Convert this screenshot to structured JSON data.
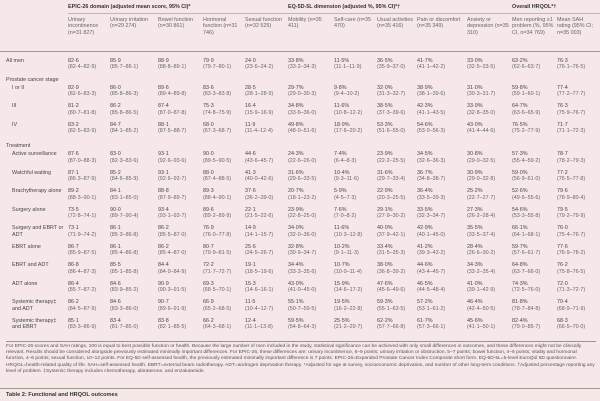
{
  "groups": {
    "epic": "EPIC-26 domain (adjusted mean score, 95% CI)*",
    "eq": "EQ-5D-5L dimension (adjusted %, 95% CI)*†",
    "overall": "Overall HRQOL*†"
  },
  "columns": [
    "Urinary incontinence (n=31 827)",
    "Urinary irritation (n=29 274)",
    "Bowel function (n=30 861)",
    "Hormonal function (n=31 746)",
    "Sexual function (n=32 525)",
    "Mobility (n=35 411)",
    "Self-care (n=35 470)",
    "Usual activities (n=35 416)",
    "Pain or discomfort (n=35 349)",
    "Anxiety or depression (n=35 310)",
    "Men reporting ≥1 problem (%, 95% CI, n=34 769)",
    "Mean SAH rating (95% CI; n=35 003)"
  ],
  "rows": [
    {
      "type": "data",
      "label": "All men",
      "indent": false,
      "cells": [
        [
          "82·6",
          "(82·4–82·9)"
        ],
        [
          "85·9",
          "(85·7–86·1)"
        ],
        [
          "88·9",
          "(88·8–89·1)"
        ],
        [
          "79·9",
          "(79·7–80·1)"
        ],
        [
          "24·0",
          "(23·6–24·2)"
        ],
        [
          "33·8%",
          "(33·2–34·3)"
        ],
        [
          "11·5%",
          "(11·1–11·9)"
        ],
        [
          "36·5%",
          "(35·9–37·0)"
        ],
        [
          "41·7%",
          "(41·1–42·2)"
        ],
        [
          "33·0%",
          "(32·5–33·5)"
        ],
        [
          "63·2%",
          "(62·6–63·7)"
        ],
        [
          "76·3",
          "(76·1–76·5)"
        ]
      ]
    },
    {
      "type": "section",
      "label": "Prostate cancer stage"
    },
    {
      "type": "data",
      "label": "I or II",
      "indent": true,
      "cells": [
        [
          "82·9",
          "(82·6–83·3)"
        ],
        [
          "86·0",
          "(85·8–86·3)"
        ],
        [
          "89·6",
          "(89·4–89·8)"
        ],
        [
          "83·6",
          "(83·3–83·8)"
        ],
        [
          "28·5",
          "(28·1–28·9)"
        ],
        [
          "29·7%",
          "(29·0–30·3)"
        ],
        [
          "9·8%",
          "(9·4–10·2)"
        ],
        [
          "32·0%",
          "(31·3–32·7)"
        ],
        [
          "38·9%",
          "(38·1–39·6)"
        ],
        [
          "31·0%",
          "(30·3–31·7)"
        ],
        [
          "59·8%",
          "(59·1–60·1)"
        ],
        [
          "77·4",
          "(77·2–77·7)"
        ]
      ]
    },
    {
      "type": "data",
      "label": "III",
      "indent": true,
      "cells": [
        [
          "81·2",
          "(80·7–81·8)"
        ],
        [
          "86·2",
          "(85·8–86·5)"
        ],
        [
          "87·4",
          "(87·0–87·8)"
        ],
        [
          "75·3",
          "(74·8–75·9)"
        ],
        [
          "16·4",
          "(15·9–16·9)"
        ],
        [
          "34·8%",
          "(33·6–36·0)"
        ],
        [
          "11·6%",
          "(10·8–12·2)"
        ],
        [
          "38·5%",
          "(37·3–39·6)"
        ],
        [
          "42·3%",
          "(41·1–43·5)"
        ],
        [
          "33·9%",
          "(32·8–35·0)"
        ],
        [
          "64·7%",
          "(63·6–65·9)"
        ],
        [
          "76·3",
          "(75·9–76·7)"
        ]
      ]
    },
    {
      "type": "data",
      "label": "IV",
      "indent": true,
      "cells": [
        [
          "83·2",
          "(82·5–83·9)"
        ],
        [
          "84·7",
          "(84·1–85·2)"
        ],
        [
          "88·1",
          "(87·5–88·7)"
        ],
        [
          "68·0",
          "(67·3–68·7)"
        ],
        [
          "11·9",
          "(11·4–12·4)"
        ],
        [
          "49·8%",
          "(48·0–51·6)"
        ],
        [
          "18·9%",
          "(17·6–20·2)"
        ],
        [
          "53·3%",
          "(51·6–55·0)"
        ],
        [
          "54·6%",
          "(53·0–56·3)"
        ],
        [
          "43·0%",
          "(41·4–44·6)"
        ],
        [
          "76·5%",
          "(75·2–77·9)"
        ],
        [
          "71·7",
          "(71·1–72·3)"
        ]
      ]
    },
    {
      "type": "section",
      "label": "Treatment"
    },
    {
      "type": "data",
      "label": "Active surveillance",
      "indent": true,
      "cells": [
        [
          "87·6",
          "(87·0–88·3)"
        ],
        [
          "83·0",
          "(82·3–83·6)"
        ],
        [
          "93·1",
          "(92·6–93·6)"
        ],
        [
          "90·0",
          "(89·5–90·5)"
        ],
        [
          "44·6",
          "(43·6–45·7)"
        ],
        [
          "24·3%",
          "(22·6–26·0)"
        ],
        [
          "7·4%",
          "(6·4–8·3)"
        ],
        [
          "23·9%",
          "(22·2–25·5)"
        ],
        [
          "34·5%",
          "(32·6–36·3)"
        ],
        [
          "30·8%",
          "(29·0–32·5)"
        ],
        [
          "57·3%",
          "(55·4–59·2)"
        ],
        [
          "78·7",
          "(78·2–79·3)"
        ]
      ]
    },
    {
      "type": "data",
      "label": "Watchful waiting",
      "indent": true,
      "cells": [
        [
          "87·1",
          "(86·3–87·9)"
        ],
        [
          "85·2",
          "(84·6–85·9)"
        ],
        [
          "93·1",
          "(92·6–93·7)"
        ],
        [
          "88·0",
          "(87·4–88·5)"
        ],
        [
          "41·3",
          "(40·0–42·6)"
        ],
        [
          "31·6%",
          "(29·6–33·5)"
        ],
        [
          "10·4%",
          "(9·3–11·6)"
        ],
        [
          "31·6%",
          "(29·7–33·4)"
        ],
        [
          "36·7%",
          "(34·8–38·7)"
        ],
        [
          "30·9%",
          "(29·0–32·8)"
        ],
        [
          "59·0%",
          "(56·9–61·0)"
        ],
        [
          "77·2",
          "(76·5–77·8)"
        ]
      ]
    },
    {
      "type": "data",
      "label": "Brachytherapy alone",
      "indent": true,
      "cells": [
        [
          "89·2",
          "(88·3–90·1)"
        ],
        [
          "84·1",
          "(83·1–85·0)"
        ],
        [
          "88·8",
          "(87·9–89·7)"
        ],
        [
          "89·3",
          "(88·4–90·1)"
        ],
        [
          "37·6",
          "(36·2–39·0)"
        ],
        [
          "20·7%",
          "(18·1–23·2)"
        ],
        [
          "5·9%",
          "(4·5–7·3)"
        ],
        [
          "22·9%",
          "(20·3–25·5)"
        ],
        [
          "36·4%",
          "(33·5–39·3)"
        ],
        [
          "25·2%",
          "(22·7–27·7)"
        ],
        [
          "52·6%",
          "(49·6–55·6)"
        ],
        [
          "79·6",
          "(78·9–80·4)"
        ]
      ]
    },
    {
      "type": "data",
      "label": "Surgery alone",
      "indent": true,
      "cells": [
        [
          "73·5",
          "(72·8–74·1)"
        ],
        [
          "90·0",
          "(89·7–90·4)"
        ],
        [
          "93·4",
          "(93·1–93·7)"
        ],
        [
          "89·6",
          "(89·2–89·9)"
        ],
        [
          "22·1",
          "(21·5–22·6)"
        ],
        [
          "23·9%",
          "(22·8–25·0)"
        ],
        [
          "7·6%",
          "(7·0–8·2)"
        ],
        [
          "29·1%",
          "(27·9–30·2)"
        ],
        [
          "33·5%",
          "(32·3–34·7)"
        ],
        [
          "27·3%",
          "(26·2–28·4)"
        ],
        [
          "54·6%",
          "(53·3–55·8)"
        ],
        [
          "79·5",
          "(79·2–79·9)"
        ]
      ]
    },
    {
      "type": "data",
      "label": "Surgery and EBRT or ADT",
      "indent": true,
      "cells": [
        [
          "73·1",
          "(71·9–74·2)"
        ],
        [
          "86·1",
          "(85·3–86·8)"
        ],
        [
          "86·2",
          "(85·5–87·0)"
        ],
        [
          "76·9",
          "(76·0–77·8)"
        ],
        [
          "14·9",
          "(14·1–15·7)"
        ],
        [
          "34·0%",
          "(32·0–36·0)"
        ],
        [
          "11·6%",
          "(10·3–12·8)"
        ],
        [
          "40·0%",
          "(37·9–42·1)"
        ],
        [
          "42·9%",
          "(40·1–45·0)"
        ],
        [
          "35·5%",
          "(33·5–37·4)"
        ],
        [
          "66·1%",
          "(64·1–68·1)"
        ],
        [
          "76·0",
          "(75·4–76·7)"
        ]
      ]
    },
    {
      "type": "data",
      "label": "EBRT alone",
      "indent": true,
      "cells": [
        [
          "86·7",
          "(85·9–87·5)"
        ],
        [
          "86·1",
          "(85·4–86·8)"
        ],
        [
          "86·2",
          "(85·4–87·0)"
        ],
        [
          "80·7",
          "(79·9–81·5)"
        ],
        [
          "25·6",
          "(24·5–26·7)"
        ],
        [
          "32·8%",
          "(30·9–34·7)"
        ],
        [
          "10·2%",
          "(9·1–11·3)"
        ],
        [
          "33·4%",
          "(31·5–35·3)"
        ],
        [
          "41·2%",
          "(39·3–43·2)"
        ],
        [
          "28·4%",
          "(26·6–30·2)"
        ],
        [
          "59·7%",
          "(57·6–61·7)"
        ],
        [
          "77·6",
          "(76·9–78·2)"
        ]
      ]
    },
    {
      "type": "data",
      "label": "EBRT and ADT",
      "indent": true,
      "cells": [
        [
          "86·8",
          "(86·4–87·3)"
        ],
        [
          "85·5",
          "(85·1–85·8)"
        ],
        [
          "84·4",
          "(84·0–84·9)"
        ],
        [
          "72·2",
          "(71·7–72·7)"
        ],
        [
          "19·1",
          "(18·5–19·6)"
        ],
        [
          "34·4%",
          "(33·3–35·6)"
        ],
        [
          "10·7%",
          "(10·0–11·4)"
        ],
        [
          "38·0%",
          "(36·8–39·2)"
        ],
        [
          "44·6%",
          "(43·4–45·7)"
        ],
        [
          "34·3%",
          "(33·2–35·4)"
        ],
        [
          "64·8%",
          "(63·7–66·0)"
        ],
        [
          "76·2",
          "(75·8–76·5)"
        ]
      ]
    },
    {
      "type": "data",
      "label": "ADT alone",
      "indent": true,
      "cells": [
        [
          "86·4",
          "(85·7–87·2)"
        ],
        [
          "84·6",
          "(83·9–85·2)"
        ],
        [
          "90·9",
          "(90·3–91·5)"
        ],
        [
          "69·3",
          "(68·5–70·1)"
        ],
        [
          "15·3",
          "(14·6–16·1)"
        ],
        [
          "43·0%",
          "(41·0–45·0)"
        ],
        [
          "15·9%",
          "(14·6–17·2)"
        ],
        [
          "47·6%",
          "(45·6–49·6)"
        ],
        [
          "46·5%",
          "(44·5–48·4)"
        ],
        [
          "41·0%",
          "(39·1–42·9)"
        ],
        [
          "74·3%",
          "(72·5–76·0)"
        ],
        [
          "72·0",
          "(71·3–72·7)"
        ]
      ]
    },
    {
      "type": "data",
      "label": "Systemic therapy‡ and ADT",
      "indent": true,
      "cells": [
        [
          "86·2",
          "(84·5–87·9)"
        ],
        [
          "84·6",
          "(83·3–86·0)"
        ],
        [
          "90·7",
          "(89·6–91·9)"
        ],
        [
          "66·9",
          "(65·2–68·5)"
        ],
        [
          "11·5",
          "(10·4–12·7)"
        ],
        [
          "55·1%",
          "(50·7–59·5)"
        ],
        [
          "19·5%",
          "(16·2–22·8)"
        ],
        [
          "59·3%",
          "(55·1–63·5)"
        ],
        [
          "57·2%",
          "(53·1–61·2)"
        ],
        [
          "46·4%",
          "(42·4–50·5)"
        ],
        [
          "81·8%",
          "(78·7–84·8)"
        ],
        [
          "70·4",
          "(68·9–71·9)"
        ]
      ]
    },
    {
      "type": "data",
      "label": "Systemic therapy‡ and EBRT",
      "indent": true,
      "cells": [
        [
          "85·1",
          "(83·3–86·9)"
        ],
        [
          "83·4",
          "(81·7–85·0)"
        ],
        [
          "83·8",
          "(82·1–85·5)"
        ],
        [
          "66·2",
          "(64·3–68·1)"
        ],
        [
          "12·4",
          "(11·1–13·8)"
        ],
        [
          "59·5%",
          "(54·8–64·3)"
        ],
        [
          "25·5%",
          "(21·2–29·7)"
        ],
        [
          "62·2%",
          "(57·7–66·8)"
        ],
        [
          "61·7%",
          "(57·3–66·1)"
        ],
        [
          "45·6%",
          "(41·1–50·1)"
        ],
        [
          "82·4%",
          "(79·0–85·7)"
        ],
        [
          "68·3",
          "(66·5–70·0)"
        ]
      ]
    }
  ],
  "footnote": "For EPIC-26 scores and SAH ratings, 100 is equal to best possible function or health. Because the large number of men included in the study, statistical significance can be achieved with only small differences in outcomes, and these differences might not be clinically relevant. Results should be considered alongside previously estimated minimally important differences. For EPIC-26, these differences are: urinary incontinence, 6–9 points; urinary irritation or obstruction, 5–7 points; bowel function, 4–6 points; vitality and hormonal function, 4–6 points; sexual function, 10–12 points. For EQ-5D self-assessed health, the previously estimated minimally important difference is 7 points. EPIC-26=Expanded Prostate Cancer Index Composite short form. EQ-5D-5L=5-level EuroQol 5D questionnaire. HRQOL=health-related quality of life. SAH=self-assessed health. EBRT=external beam radiotherapy. ADT=androgen deprivation therapy. *Adjusted for age at survey, socioeconomic deprivation, and number of other long-term conditions. †Adjusted percentage reporting any level of problem. ‡Systemic therapy includes chemotherapy, abiraterone, and enzalutamide.",
  "caption": "Table 2: Functional and HRQOL outcomes"
}
